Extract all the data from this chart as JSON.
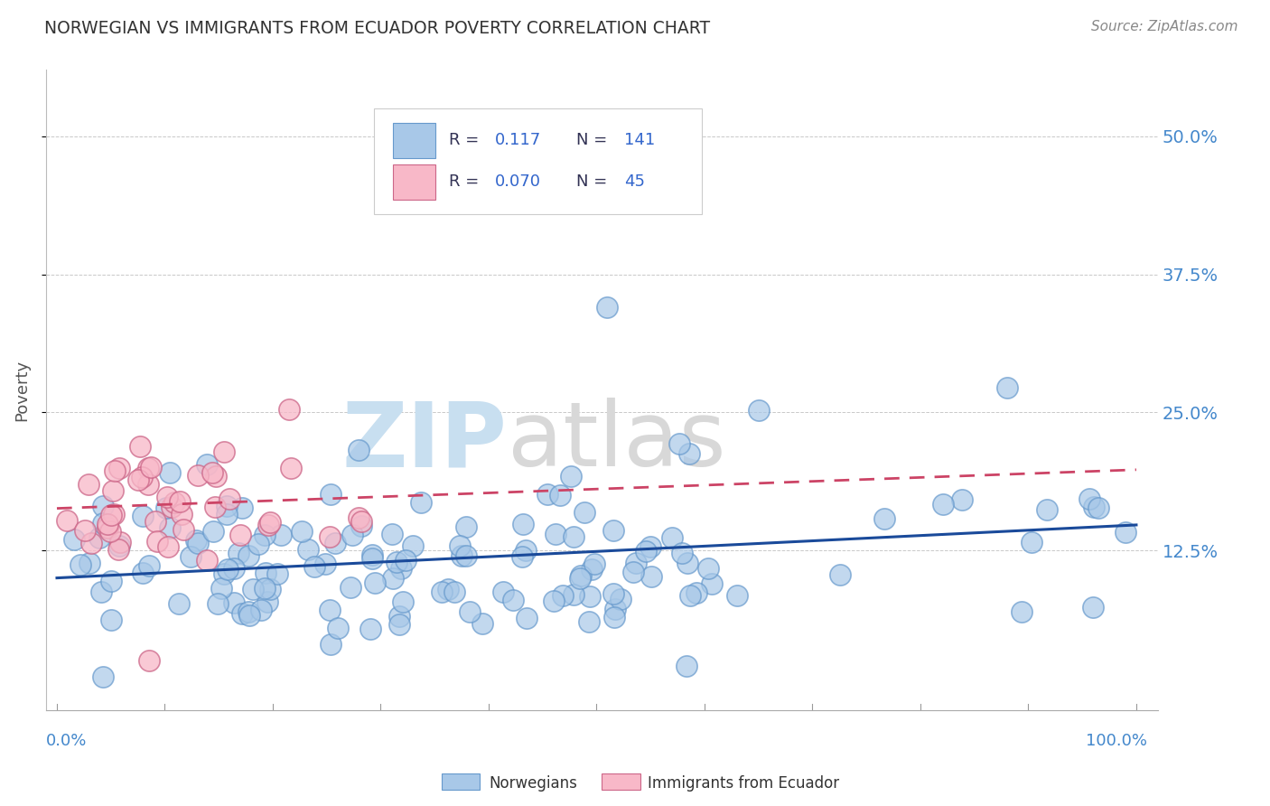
{
  "title": "NORWEGIAN VS IMMIGRANTS FROM ECUADOR POVERTY CORRELATION CHART",
  "source": "Source: ZipAtlas.com",
  "ylabel": "Poverty",
  "xlim": [
    0.0,
    1.0
  ],
  "ylim": [
    0.0,
    0.55
  ],
  "ytick_vals": [
    0.125,
    0.25,
    0.375,
    0.5
  ],
  "ytick_labels": [
    "12.5%",
    "25.0%",
    "37.5%",
    "50.0%"
  ],
  "norwegian_color": "#a8c8e8",
  "norwegian_edge": "#6699cc",
  "ecuador_color": "#f8b8c8",
  "ecuador_edge": "#cc6688",
  "trend_norwegian_color": "#1a4a9a",
  "trend_ecuador_color": "#cc4466",
  "background_color": "#ffffff",
  "grid_color": "#bbbbbb",
  "title_color": "#333333",
  "axis_label_color": "#555555",
  "tick_label_color": "#4488cc",
  "legend_box_color": "#dddddd",
  "watermark_zip_color": "#c8dff0",
  "watermark_atlas_color": "#d8d8d8"
}
